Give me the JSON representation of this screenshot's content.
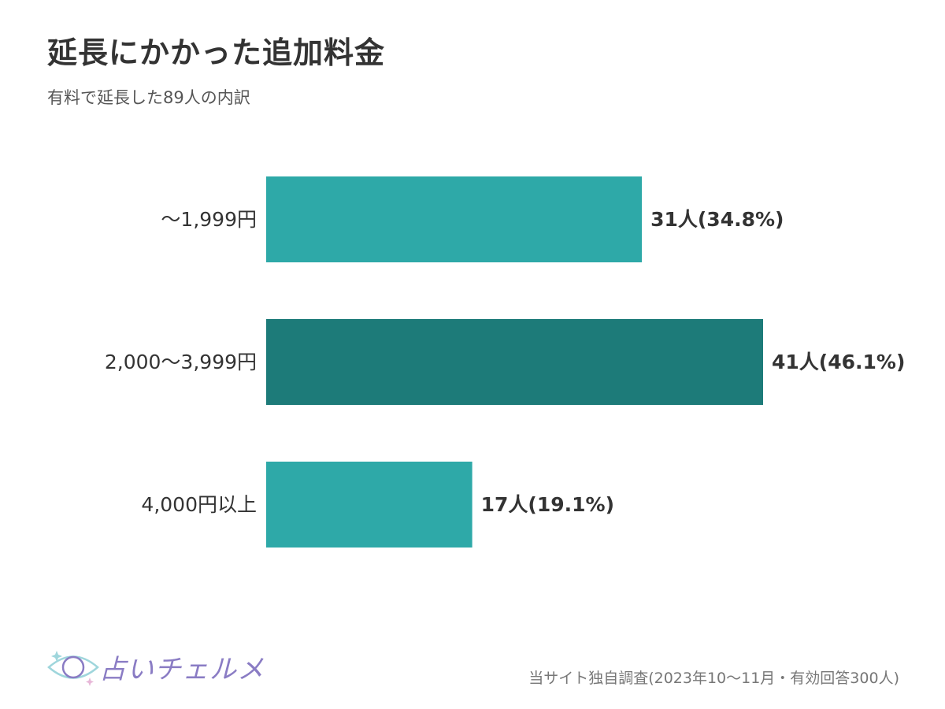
{
  "title": "延長にかかった追加料金",
  "subtitle": "有料で延長した89人の内訳",
  "chart_data": {
    "type": "bar",
    "orientation": "horizontal",
    "categories": [
      "〜1,999円",
      "2,000〜3,999円",
      "4,000円以上"
    ],
    "values": [
      31,
      41,
      17
    ],
    "percentages": [
      34.8,
      46.1,
      19.1
    ],
    "data_labels": [
      "31人(34.8%)",
      "41人(46.1%)",
      "17人(19.1%)"
    ],
    "highlight_index": 1,
    "colors": {
      "bar": "#2ea9a8",
      "highlight": "#1d7b79"
    },
    "legend": "none",
    "grid": false
  },
  "footer": {
    "logo_text": "占いチェルメ",
    "logo_icon": "eye-moon-icon",
    "source": "当サイト独自調査(2023年10〜11月・有効回答300人)"
  }
}
